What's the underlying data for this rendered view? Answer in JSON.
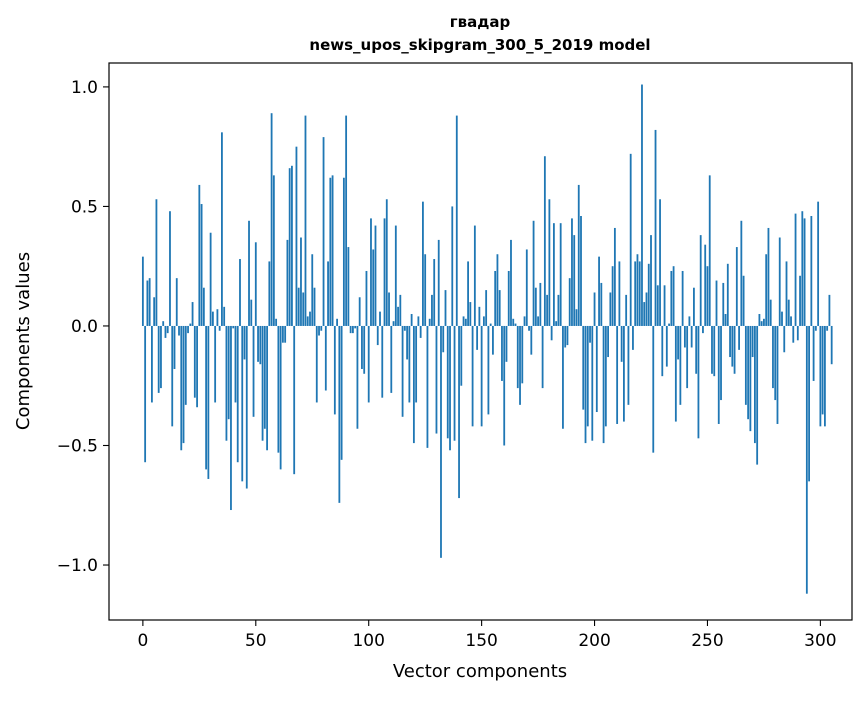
{
  "chart_data": {
    "type": "bar",
    "title": "гвадар",
    "subtitle": "news_upos_skipgram_300_5_2019 model",
    "xlabel": "Vector components",
    "ylabel": "Components values",
    "xlim": [
      -15,
      314
    ],
    "ylim": [
      -1.23,
      1.1
    ],
    "xticks": [
      0,
      50,
      100,
      150,
      200,
      250,
      300
    ],
    "yticks": [
      -1.0,
      -0.5,
      0.0,
      0.5,
      1.0
    ],
    "xtick_labels": [
      "0",
      "50",
      "100",
      "150",
      "200",
      "250",
      "300"
    ],
    "ytick_labels": [
      "−1.0",
      "−0.5",
      "0.0",
      "0.5",
      "1.0"
    ],
    "grid": false,
    "bar_color": "#1f77b4",
    "x_start": 0,
    "values": [
      0.29,
      -0.57,
      0.19,
      0.2,
      -0.32,
      0.12,
      0.53,
      -0.28,
      -0.26,
      0.02,
      -0.05,
      -0.03,
      0.48,
      -0.42,
      -0.18,
      0.2,
      -0.04,
      -0.52,
      -0.49,
      -0.33,
      -0.03,
      0.01,
      0.1,
      -0.3,
      -0.34,
      0.59,
      0.51,
      0.16,
      -0.6,
      -0.64,
      0.39,
      0.06,
      -0.32,
      0.07,
      -0.02,
      0.81,
      0.08,
      -0.48,
      -0.39,
      -0.77,
      -0.01,
      -0.32,
      -0.57,
      0.28,
      -0.65,
      -0.14,
      -0.68,
      0.44,
      0.11,
      -0.38,
      0.35,
      -0.15,
      -0.16,
      -0.48,
      -0.43,
      -0.52,
      0.27,
      0.89,
      0.63,
      0.03,
      -0.53,
      -0.6,
      -0.07,
      -0.07,
      0.36,
      0.66,
      0.67,
      -0.62,
      0.75,
      0.16,
      0.37,
      0.14,
      0.88,
      0.04,
      0.06,
      0.3,
      0.16,
      -0.32,
      -0.04,
      -0.02,
      0.79,
      -0.27,
      0.27,
      0.62,
      0.63,
      -0.37,
      0.03,
      -0.74,
      -0.56,
      0.62,
      0.88,
      0.33,
      -0.03,
      -0.03,
      -0.01,
      -0.43,
      0.12,
      -0.18,
      -0.2,
      0.23,
      -0.32,
      0.45,
      0.32,
      0.42,
      -0.08,
      0.06,
      -0.3,
      0.45,
      0.53,
      0.14,
      -0.28,
      0.02,
      0.42,
      0.08,
      0.13,
      -0.38,
      -0.02,
      -0.14,
      -0.32,
      0.05,
      -0.49,
      -0.32,
      0.04,
      -0.05,
      0.52,
      0.3,
      -0.51,
      0.03,
      0.13,
      0.28,
      -0.45,
      0.36,
      -0.97,
      -0.11,
      0.15,
      -0.47,
      -0.52,
      0.5,
      -0.48,
      0.88,
      -0.72,
      -0.25,
      0.04,
      0.03,
      0.27,
      0.1,
      -0.42,
      0.42,
      -0.1,
      0.08,
      -0.42,
      0.04,
      0.15,
      -0.37,
      0.01,
      -0.12,
      0.23,
      0.3,
      0.15,
      -0.23,
      -0.5,
      -0.15,
      0.23,
      0.36,
      0.03,
      0.01,
      -0.26,
      -0.33,
      -0.24,
      0.04,
      0.32,
      -0.02,
      -0.12,
      0.44,
      0.16,
      0.04,
      0.18,
      -0.26,
      0.71,
      0.13,
      0.53,
      -0.06,
      0.43,
      0.02,
      0.13,
      0.43,
      -0.43,
      -0.09,
      -0.08,
      0.2,
      0.45,
      0.38,
      0.07,
      0.59,
      0.46,
      -0.35,
      -0.49,
      -0.42,
      -0.07,
      -0.48,
      0.14,
      -0.36,
      0.29,
      0.18,
      -0.49,
      -0.42,
      -0.13,
      0.14,
      0.25,
      0.41,
      -0.41,
      0.27,
      -0.15,
      -0.4,
      0.13,
      -0.33,
      0.72,
      -0.1,
      0.27,
      0.3,
      0.27,
      1.01,
      0.1,
      0.14,
      0.26,
      0.38,
      -0.53,
      0.82,
      0.17,
      0.53,
      -0.21,
      0.17,
      -0.17,
      0.01,
      0.23,
      0.25,
      -0.4,
      -0.14,
      -0.33,
      0.23,
      -0.09,
      -0.26,
      0.04,
      -0.09,
      0.16,
      -0.2,
      -0.47,
      0.38,
      -0.03,
      0.34,
      0.25,
      0.63,
      -0.2,
      -0.21,
      0.19,
      -0.41,
      -0.31,
      0.18,
      0.05,
      0.26,
      -0.13,
      -0.17,
      -0.2,
      0.33,
      -0.1,
      0.44,
      0.21,
      -0.33,
      -0.39,
      -0.44,
      -0.13,
      -0.49,
      -0.58,
      0.05,
      0.02,
      0.03,
      0.3,
      0.41,
      0.11,
      -0.26,
      -0.31,
      -0.41,
      0.37,
      0.06,
      -0.11,
      0.27,
      0.11,
      0.04,
      -0.07,
      0.47,
      -0.06,
      0.21,
      0.48,
      0.45,
      -1.12,
      -0.65,
      0.46,
      -0.23,
      -0.02,
      0.52,
      -0.42,
      -0.37,
      -0.42,
      -0.02,
      0.13,
      -0.16
    ]
  }
}
